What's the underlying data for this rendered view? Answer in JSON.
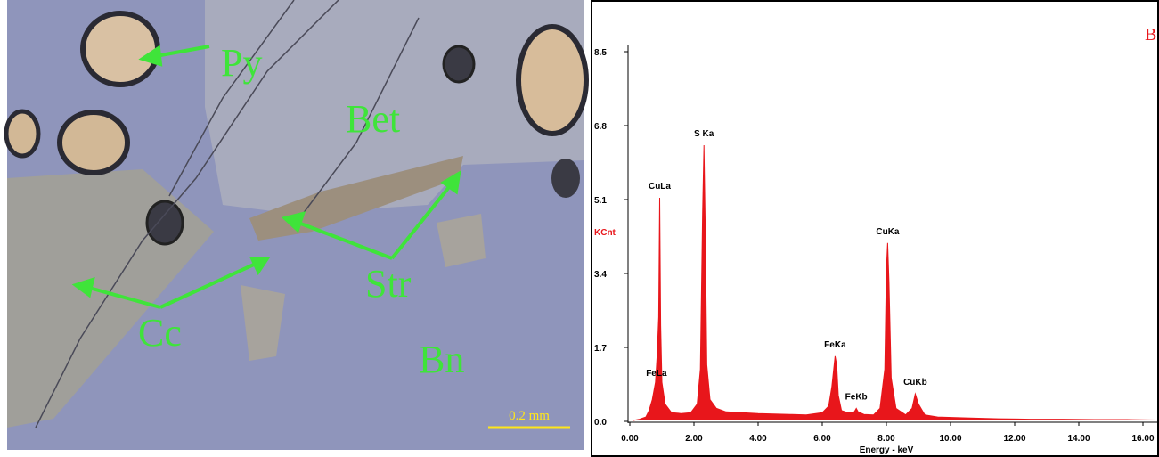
{
  "micrograph": {
    "labels": [
      "Py",
      "Bet",
      "Str",
      "Cc",
      "Bn"
    ],
    "scale_bar": "0.2 mm"
  },
  "chart_data": {
    "type": "area",
    "panel_label": "B",
    "ylabel": "KCnt",
    "xlabel": "Energy - keV",
    "color": "#e8161b",
    "x": [
      0.1,
      0.3,
      0.5,
      0.6,
      0.7,
      0.75,
      0.8,
      0.85,
      0.9,
      0.93,
      0.96,
      1.0,
      1.1,
      1.3,
      1.6,
      1.9,
      2.1,
      2.2,
      2.27,
      2.31,
      2.35,
      2.4,
      2.5,
      2.7,
      3.0,
      3.5,
      4.0,
      4.5,
      5.0,
      5.5,
      6.0,
      6.2,
      6.3,
      6.4,
      6.45,
      6.5,
      6.6,
      6.8,
      7.0,
      7.06,
      7.12,
      7.3,
      7.6,
      7.8,
      7.95,
      8.0,
      8.04,
      8.08,
      8.15,
      8.3,
      8.6,
      8.8,
      8.9,
      9.0,
      9.2,
      9.6,
      10.5,
      11.5,
      12.5,
      13.5,
      14.5,
      15.5,
      16.4
    ],
    "values": [
      0.02,
      0.05,
      0.1,
      0.25,
      0.5,
      0.7,
      0.9,
      1.5,
      2.4,
      5.14,
      2.2,
      0.9,
      0.4,
      0.2,
      0.18,
      0.2,
      0.4,
      1.2,
      4.8,
      6.35,
      4.5,
      1.3,
      0.5,
      0.3,
      0.22,
      0.2,
      0.18,
      0.17,
      0.16,
      0.15,
      0.2,
      0.35,
      0.8,
      1.5,
      1.3,
      0.6,
      0.25,
      0.2,
      0.22,
      0.3,
      0.22,
      0.16,
      0.15,
      0.3,
      1.2,
      3.5,
      4.1,
      3.2,
      1.0,
      0.3,
      0.15,
      0.3,
      0.63,
      0.4,
      0.15,
      0.1,
      0.08,
      0.06,
      0.05,
      0.05,
      0.04,
      0.04,
      0.03
    ],
    "peak_labels": [
      {
        "label": "FeLa",
        "x": 0.83,
        "y": 0.84
      },
      {
        "label": "CuLa",
        "x": 0.93,
        "y": 5.14
      },
      {
        "label": "S Ka",
        "x": 2.31,
        "y": 6.35
      },
      {
        "label": "FeKa",
        "x": 6.4,
        "y": 1.5
      },
      {
        "label": "FeKb",
        "x": 7.06,
        "y": 0.3
      },
      {
        "label": "CuKa",
        "x": 8.04,
        "y": 4.1
      },
      {
        "label": "CuKb",
        "x": 8.9,
        "y": 0.63
      }
    ],
    "xlim": [
      0,
      16.4
    ],
    "ylim": [
      0,
      8.5
    ],
    "xticks": [
      {
        "value": 0,
        "label": "0.00"
      },
      {
        "value": 2,
        "label": "2.00"
      },
      {
        "value": 4,
        "label": "4.00"
      },
      {
        "value": 6,
        "label": "6.00"
      },
      {
        "value": 8,
        "label": "8.00"
      },
      {
        "value": 10,
        "label": "10.00"
      },
      {
        "value": 12,
        "label": "12.00"
      },
      {
        "value": 14,
        "label": "14.00"
      },
      {
        "value": 16,
        "label": "16.00"
      }
    ],
    "yticks": [
      {
        "value": 0,
        "label": "0.0"
      },
      1.7,
      3.4,
      5.1,
      6.8,
      8.5
    ]
  }
}
